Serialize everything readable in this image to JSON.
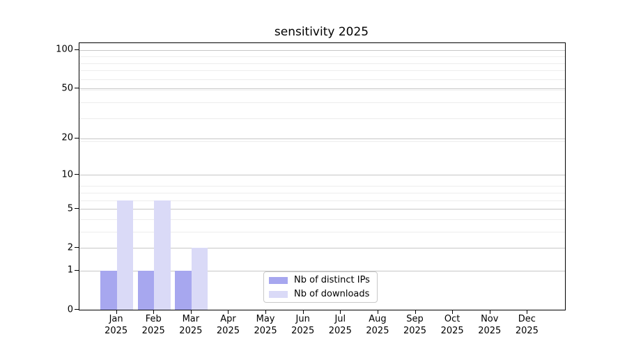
{
  "chart_data": {
    "type": "bar",
    "title": "sensitivity 2025",
    "categories": [
      "Jan",
      "Feb",
      "Mar",
      "Apr",
      "May",
      "Jun",
      "Jul",
      "Aug",
      "Sep",
      "Oct",
      "Nov",
      "Dec"
    ],
    "x_sub_label": "2025",
    "series": [
      {
        "name": "Nb of distinct IPs",
        "color": "#a7a7ef",
        "values": [
          1,
          1,
          1,
          0,
          0,
          0,
          0,
          0,
          0,
          0,
          0,
          0
        ]
      },
      {
        "name": "Nb of downloads",
        "color": "#dadaf7",
        "values": [
          6,
          6,
          2,
          0,
          0,
          0,
          0,
          0,
          0,
          0,
          0,
          0
        ]
      }
    ],
    "yscale": "log1p",
    "ylim": [
      0,
      113
    ],
    "yticks_major": [
      0,
      1,
      2,
      5,
      10,
      20,
      50,
      100
    ],
    "yticks_minor": [
      3,
      4,
      6,
      7,
      8,
      19,
      29,
      39,
      49,
      59,
      69,
      79,
      89
    ],
    "grid": "horizontal",
    "legend_position": "lower center"
  },
  "colors": {
    "background": "#ffffff",
    "axis": "#000000",
    "grid_major": "#c6c6c6",
    "grid_minor": "#ededed",
    "text": "#000000"
  }
}
